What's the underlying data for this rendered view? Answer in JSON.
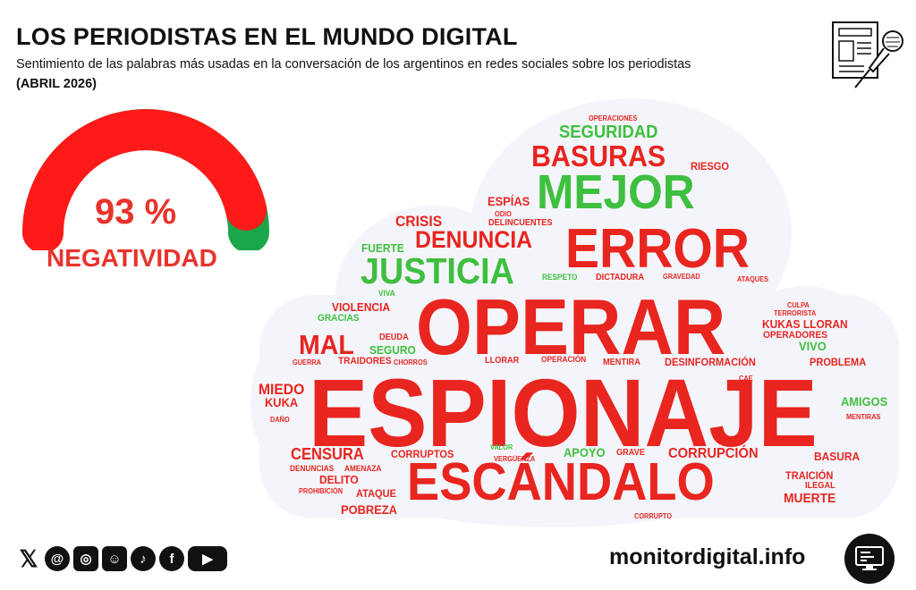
{
  "header": {
    "title": "LOS PERIODISTAS EN EL MUNDO DIGITAL",
    "subtitle": "Sentimiento de las palabras más usadas en la conversación de los argentinos en redes sociales sobre los periodistas",
    "date": "(ABRIL 2026)"
  },
  "gauge": {
    "value_text": "93 %",
    "label": "NEGATIVIDAD",
    "negative_fraction": 0.93,
    "colors": {
      "negative": "#ff1a1a",
      "positive": "#1aa64a"
    }
  },
  "word_cloud": {
    "colors": {
      "negative": "#e8251f",
      "positive": "#3fbf3f"
    },
    "words": [
      {
        "text": "OPERACIONES",
        "sentiment": "neg"
      },
      {
        "text": "SEGURIDAD",
        "sentiment": "pos"
      },
      {
        "text": "BASURAS",
        "sentiment": "neg"
      },
      {
        "text": "RIESGO",
        "sentiment": "neg"
      },
      {
        "text": "MEJOR",
        "sentiment": "pos"
      },
      {
        "text": "ESPÍAS",
        "sentiment": "neg"
      },
      {
        "text": "ODIO",
        "sentiment": "neg"
      },
      {
        "text": "DELINCUENTES",
        "sentiment": "neg"
      },
      {
        "text": "CRISIS",
        "sentiment": "neg"
      },
      {
        "text": "DENUNCIA",
        "sentiment": "neg"
      },
      {
        "text": "ERROR",
        "sentiment": "neg"
      },
      {
        "text": "FUERTE",
        "sentiment": "pos"
      },
      {
        "text": "JUSTICIA",
        "sentiment": "pos"
      },
      {
        "text": "RESPETO",
        "sentiment": "pos"
      },
      {
        "text": "DICTADURA",
        "sentiment": "neg"
      },
      {
        "text": "GRAVEDAD",
        "sentiment": "neg"
      },
      {
        "text": "ATAQUES",
        "sentiment": "neg"
      },
      {
        "text": "VIVA",
        "sentiment": "pos"
      },
      {
        "text": "VIOLENCIA",
        "sentiment": "neg"
      },
      {
        "text": "OPERAR",
        "sentiment": "neg"
      },
      {
        "text": "CULPA",
        "sentiment": "neg"
      },
      {
        "text": "TERRORISTA",
        "sentiment": "neg"
      },
      {
        "text": "GRACIAS",
        "sentiment": "pos"
      },
      {
        "text": "KUKAS LLORAN",
        "sentiment": "neg"
      },
      {
        "text": "MAL",
        "sentiment": "neg"
      },
      {
        "text": "DEUDA",
        "sentiment": "neg"
      },
      {
        "text": "OPERADORES",
        "sentiment": "neg"
      },
      {
        "text": "SEGURO",
        "sentiment": "pos"
      },
      {
        "text": "VIVO",
        "sentiment": "pos"
      },
      {
        "text": "GUERRA",
        "sentiment": "neg"
      },
      {
        "text": "TRAIDORES",
        "sentiment": "neg"
      },
      {
        "text": "CHORROS",
        "sentiment": "neg"
      },
      {
        "text": "LLORAR",
        "sentiment": "neg"
      },
      {
        "text": "OPERACIÓN",
        "sentiment": "neg"
      },
      {
        "text": "MENTIRA",
        "sentiment": "neg"
      },
      {
        "text": "DESINFORMACIÓN",
        "sentiment": "neg"
      },
      {
        "text": "PROBLEMA",
        "sentiment": "neg"
      },
      {
        "text": "MIEDO",
        "sentiment": "neg"
      },
      {
        "text": "CAE",
        "sentiment": "neg"
      },
      {
        "text": "KUKA",
        "sentiment": "neg"
      },
      {
        "text": "ESPIONAJE",
        "sentiment": "neg"
      },
      {
        "text": "AMIGOS",
        "sentiment": "pos"
      },
      {
        "text": "DAÑO",
        "sentiment": "neg"
      },
      {
        "text": "MENTIRAS",
        "sentiment": "neg"
      },
      {
        "text": "VALOR",
        "sentiment": "pos"
      },
      {
        "text": "CENSURA",
        "sentiment": "neg"
      },
      {
        "text": "CORRUPTOS",
        "sentiment": "neg"
      },
      {
        "text": "APOYO",
        "sentiment": "pos"
      },
      {
        "text": "GRAVE",
        "sentiment": "neg"
      },
      {
        "text": "CORRUPCIÓN",
        "sentiment": "neg"
      },
      {
        "text": "VERGÜENZA",
        "sentiment": "neg"
      },
      {
        "text": "BASURA",
        "sentiment": "neg"
      },
      {
        "text": "DENUNCIAS",
        "sentiment": "neg"
      },
      {
        "text": "AMENAZA",
        "sentiment": "neg"
      },
      {
        "text": "TRAICIÓN",
        "sentiment": "neg"
      },
      {
        "text": "DELITO",
        "sentiment": "neg"
      },
      {
        "text": "ESCÁNDALO",
        "sentiment": "neg"
      },
      {
        "text": "ILEGAL",
        "sentiment": "neg"
      },
      {
        "text": "PROHIBICIÓN",
        "sentiment": "neg"
      },
      {
        "text": "ATAQUE",
        "sentiment": "neg"
      },
      {
        "text": "MUERTE",
        "sentiment": "neg"
      },
      {
        "text": "POBREZA",
        "sentiment": "neg"
      },
      {
        "text": "CORRUPTO",
        "sentiment": "neg"
      }
    ]
  },
  "footer": {
    "social_icons": [
      "x-icon",
      "threads-icon",
      "instagram-icon",
      "ai-icon",
      "tiktok-icon",
      "facebook-icon",
      "youtube-icon"
    ],
    "site": "monitordigital.info"
  }
}
